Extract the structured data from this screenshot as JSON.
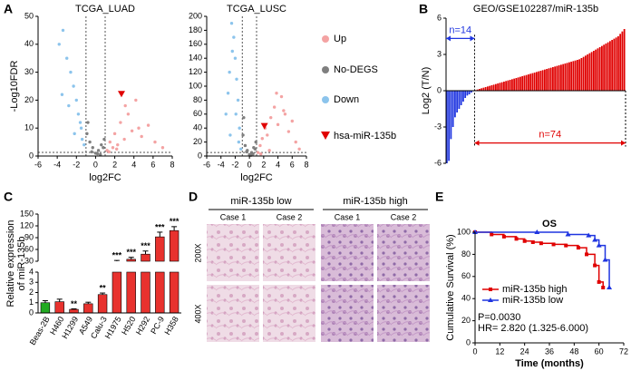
{
  "panel_labels": [
    "A",
    "B",
    "C",
    "D",
    "E"
  ],
  "histology": {
    "groups": [
      "miR-135b low",
      "miR-135b high"
    ],
    "cases": [
      "Case 1",
      "Case 2"
    ],
    "magnifications": [
      "200X",
      "400X"
    ]
  },
  "chart_data": [
    {
      "type": "scatter",
      "title": "TCGA_LUAD",
      "x_label": "log2FC",
      "y_label": "-Log10FDR",
      "xlim": [
        -6,
        8
      ],
      "xticks": [
        -6,
        -4,
        -2,
        0,
        2,
        4,
        6,
        8
      ],
      "ylim": [
        0,
        50
      ],
      "yticks": [
        0,
        10,
        20,
        30,
        40,
        50
      ],
      "vlines": [
        -1,
        1
      ],
      "hline": 1.3,
      "series": [
        {
          "name": "Up",
          "color": "#f4a3a3",
          "x": [
            1.2,
            1.5,
            1.8,
            2.0,
            2.3,
            2.6,
            3.0,
            3.4,
            3.8,
            4.2,
            4.8,
            5.5,
            6.2,
            7.0,
            1.4,
            2.2,
            3.1,
            4.5
          ],
          "values": [
            2,
            5,
            3,
            8,
            4,
            12,
            6,
            15,
            9,
            20,
            7,
            11,
            5,
            3,
            1.5,
            2.5,
            18,
            10
          ]
        },
        {
          "name": "No-DEGS",
          "color": "#7f7f7f",
          "x": [
            -0.9,
            -0.6,
            -0.3,
            0,
            0.3,
            0.6,
            0.9,
            -0.8,
            0.5,
            -0.4,
            0.2,
            0.8
          ],
          "values": [
            8,
            5,
            3,
            1,
            2,
            4,
            6,
            12,
            0.5,
            1.5,
            0.8,
            3
          ]
        },
        {
          "name": "Down",
          "color": "#8cc4ec",
          "x": [
            -1.2,
            -1.5,
            -1.8,
            -2.0,
            -2.3,
            -2.6,
            -3.0,
            -3.4,
            -3.8,
            -1.4,
            -2.8,
            -3.5,
            -1.6,
            -2.2
          ],
          "values": [
            4,
            10,
            15,
            20,
            25,
            30,
            35,
            45,
            40,
            6,
            18,
            22,
            12,
            8
          ]
        },
        {
          "name": "hsa-miR-135b",
          "color": "#e00000",
          "marker": "triangle",
          "x": [
            2.7
          ],
          "values": [
            22
          ]
        }
      ]
    },
    {
      "type": "scatter",
      "title": "TCGA_LUSC",
      "x_label": "log2FC",
      "xlim": [
        -6,
        8
      ],
      "xticks": [
        -6,
        -4,
        -2,
        0,
        2,
        4,
        6,
        8
      ],
      "ylim": [
        0,
        200
      ],
      "yticks": [
        0,
        20,
        40,
        60,
        80,
        100,
        120,
        140,
        160,
        180,
        200
      ],
      "vlines": [
        -1,
        1
      ],
      "hline": 5,
      "series": [
        {
          "color": "#f4a3a3",
          "x": [
            1.2,
            1.5,
            1.8,
            2.2,
            2.5,
            3.0,
            3.5,
            4.0,
            4.5,
            5.0,
            5.5,
            6.0,
            6.5,
            7.0,
            1.6,
            2.8,
            3.8,
            4.8
          ],
          "values": [
            5,
            15,
            25,
            40,
            30,
            55,
            70,
            45,
            85,
            60,
            35,
            50,
            20,
            10,
            3,
            8,
            90,
            65
          ]
        },
        {
          "color": "#7f7f7f",
          "x": [
            -0.9,
            -0.6,
            -0.3,
            0,
            0.3,
            0.6,
            0.9,
            -0.8,
            0.5,
            -0.4,
            0.2,
            0.8
          ],
          "values": [
            30,
            15,
            8,
            2,
            5,
            12,
            20,
            55,
            3,
            6,
            1,
            10
          ]
        },
        {
          "color": "#8cc4ec",
          "x": [
            -1.2,
            -1.4,
            -1.6,
            -1.8,
            -2.0,
            -2.2,
            -2.5,
            -2.8,
            -3.0,
            -3.3,
            -1.5,
            -2.4,
            -1.9,
            -2.7
          ],
          "values": [
            10,
            40,
            80,
            110,
            140,
            170,
            190,
            120,
            90,
            60,
            20,
            150,
            60,
            30
          ]
        },
        {
          "color": "#e00000",
          "marker": "triangle",
          "x": [
            2.1
          ],
          "values": [
            42
          ]
        }
      ]
    },
    {
      "type": "waterfall",
      "title": "GEO/GSE102287/miR-135b",
      "y_label": "Log2 (T/N)",
      "ylim": [
        -6,
        6
      ],
      "yticks": [
        -6,
        -3,
        0,
        3,
        6
      ],
      "color_negative": "#1f35e0",
      "color_positive": "#e00000",
      "annotations": [
        {
          "text": "n=14",
          "color": "#1f35e0"
        },
        {
          "text": "n=74",
          "color": "#e00000"
        }
      ],
      "values": [
        -6.0,
        -5.8,
        -4.0,
        -3.0,
        -2.2,
        -1.8,
        -1.5,
        -1.2,
        -0.9,
        -0.6,
        -0.4,
        -0.3,
        -0.15,
        -0.05,
        0.05,
        0.1,
        0.15,
        0.2,
        0.25,
        0.3,
        0.35,
        0.4,
        0.45,
        0.5,
        0.55,
        0.6,
        0.65,
        0.7,
        0.75,
        0.8,
        0.85,
        0.9,
        0.95,
        1.0,
        1.05,
        1.1,
        1.15,
        1.2,
        1.25,
        1.3,
        1.35,
        1.4,
        1.45,
        1.5,
        1.55,
        1.6,
        1.65,
        1.7,
        1.75,
        1.8,
        1.85,
        1.9,
        1.95,
        2.0,
        2.05,
        2.1,
        2.15,
        2.2,
        2.25,
        2.3,
        2.35,
        2.4,
        2.45,
        2.5,
        2.55,
        2.6,
        2.7,
        2.8,
        2.9,
        3.0,
        3.1,
        3.2,
        3.3,
        3.4,
        3.5,
        3.6,
        3.7,
        3.8,
        3.9,
        4.0,
        4.1,
        4.2,
        4.3,
        4.4,
        4.5,
        4.7,
        4.9,
        5.1
      ]
    },
    {
      "type": "broken-bar",
      "y_label": [
        "Relative expression",
        "of miR-135b"
      ],
      "categories": [
        "Beas-2B",
        "H460",
        "H1299",
        "A549",
        "Calu-3",
        "H1975",
        "H520",
        "H292",
        "PC-9",
        "H358"
      ],
      "values": [
        1.0,
        1.1,
        0.35,
        0.9,
        1.8,
        30,
        35,
        48,
        92,
        108
      ],
      "errors": [
        0.2,
        0.25,
        0.05,
        0.15,
        0.15,
        2,
        5,
        8,
        12,
        10
      ],
      "significance": [
        null,
        null,
        "**",
        null,
        "**",
        "***",
        "***",
        "***",
        "***",
        "***"
      ],
      "colors": [
        "#22aa22",
        "#e8322e",
        "#e8322e",
        "#e8322e",
        "#e8322e",
        "#e8322e",
        "#e8322e",
        "#e8322e",
        "#e8322e",
        "#e8322e"
      ],
      "ylim_lower": [
        0,
        4
      ],
      "yticks_lower": [
        0,
        1,
        2,
        3,
        4
      ],
      "ylim_upper": [
        30,
        150
      ],
      "yticks_upper": [
        30,
        60,
        90,
        120,
        150
      ]
    },
    {
      "type": "survival",
      "title": "OS",
      "x_label": "Time (months)",
      "y_label": "Cumulative Survival (%)",
      "xlim": [
        0,
        72
      ],
      "xticks": [
        0,
        12,
        24,
        36,
        48,
        60,
        72
      ],
      "ylim": [
        0,
        100
      ],
      "yticks": [
        0,
        20,
        40,
        60,
        80,
        100
      ],
      "annotations": [
        "P=0.0030",
        "HR= 2.820 (1.325-6.000)"
      ],
      "series": [
        {
          "name": "miR-135b high",
          "color": "#e00000",
          "x": [
            0,
            8,
            14,
            20,
            24,
            28,
            32,
            38,
            44,
            50,
            54,
            58,
            60,
            62
          ],
          "values": [
            100,
            98,
            96,
            94,
            92,
            91,
            90,
            89,
            88,
            86,
            80,
            70,
            55,
            50
          ]
        },
        {
          "name": "miR-135b low",
          "color": "#1f35e0",
          "x": [
            0,
            30,
            45,
            55,
            58,
            60,
            63,
            65
          ],
          "values": [
            100,
            100,
            98,
            97,
            93,
            88,
            75,
            50
          ]
        }
      ]
    }
  ]
}
